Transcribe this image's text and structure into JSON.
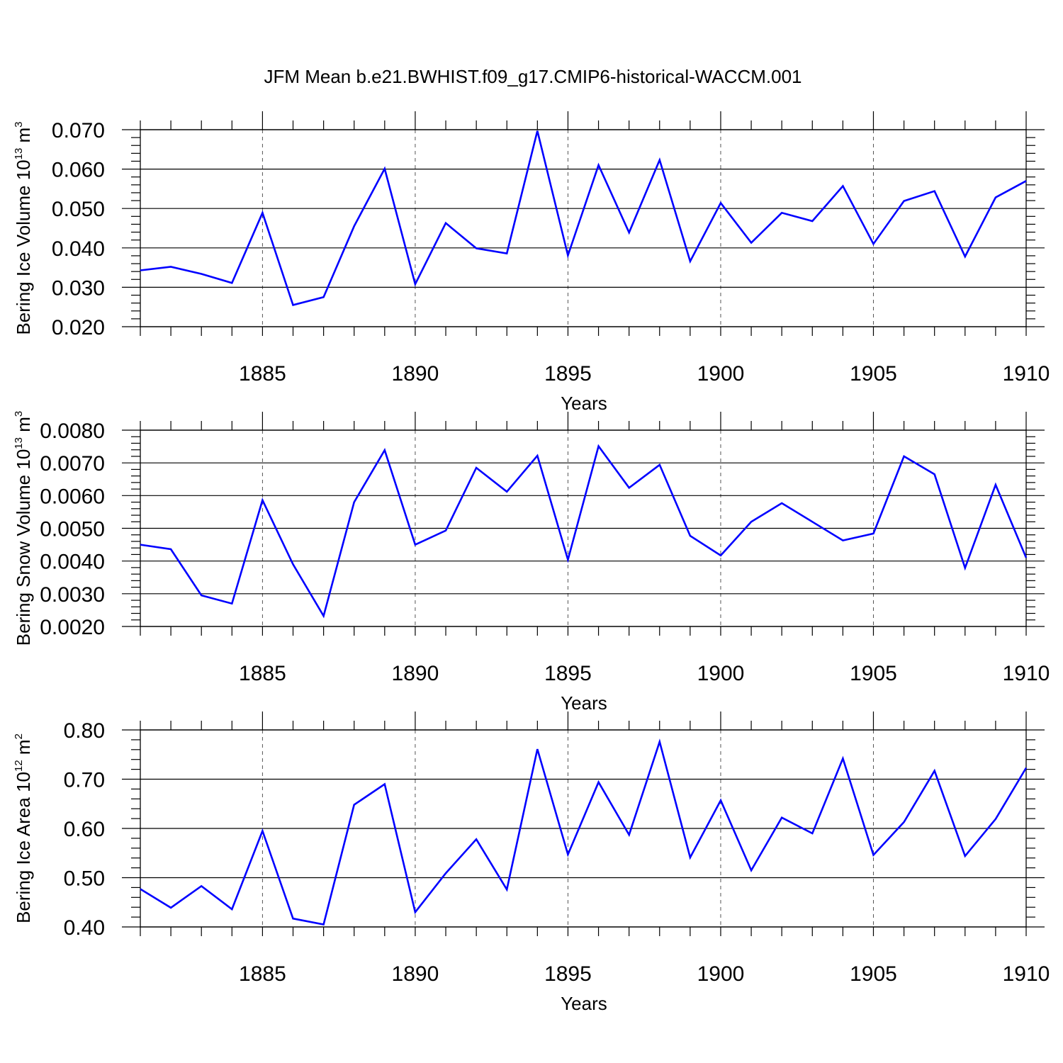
{
  "title": "JFM Mean b.e21.BWHIST.f09_g17.CMIP6-historical-WACCM.001",
  "colors": {
    "line": "#0000ff",
    "axis": "#000000",
    "grid": "#555555"
  },
  "chart_data": [
    {
      "type": "line",
      "name": "ice-volume",
      "ylabel": {
        "text": "Bering Ice Volume 10",
        "exp": "13",
        "unit": " m",
        "unit_exp": "3"
      },
      "xlabel": "Years",
      "xlim": [
        1881,
        1910
      ],
      "ylim": [
        0.02,
        0.07
      ],
      "xticks": [
        1885,
        1890,
        1895,
        1900,
        1905,
        1910
      ],
      "xtick_labels": [
        "1885",
        "1890",
        "1895",
        "1900",
        "1905",
        "1910"
      ],
      "yticks": [
        0.02,
        0.03,
        0.04,
        0.05,
        0.06,
        0.07
      ],
      "ytick_labels": [
        "0.020",
        "0.030",
        "0.040",
        "0.050",
        "0.060",
        "0.070"
      ],
      "grid": "vertical-dashed",
      "x": [
        1881,
        1882,
        1883,
        1884,
        1885,
        1886,
        1887,
        1888,
        1889,
        1890,
        1891,
        1892,
        1893,
        1894,
        1895,
        1896,
        1897,
        1898,
        1899,
        1900,
        1901,
        1902,
        1903,
        1904,
        1905,
        1906,
        1907,
        1908,
        1909,
        1910
      ],
      "values": [
        0.0343,
        0.0352,
        0.0334,
        0.0311,
        0.0489,
        0.0255,
        0.0275,
        0.0455,
        0.0601,
        0.0308,
        0.0463,
        0.0399,
        0.0386,
        0.0697,
        0.0381,
        0.061,
        0.0439,
        0.0623,
        0.0366,
        0.0514,
        0.0413,
        0.0489,
        0.0468,
        0.0557,
        0.041,
        0.0519,
        0.0544,
        0.0378,
        0.0528,
        0.057
      ]
    },
    {
      "type": "line",
      "name": "snow-volume",
      "ylabel": {
        "text": "Bering Snow Volume 10",
        "exp": "13",
        "unit": " m",
        "unit_exp": "3"
      },
      "xlabel": "Years",
      "xlim": [
        1881,
        1910
      ],
      "ylim": [
        0.002,
        0.008
      ],
      "xticks": [
        1885,
        1890,
        1895,
        1900,
        1905,
        1910
      ],
      "xtick_labels": [
        "1885",
        "1890",
        "1895",
        "1900",
        "1905",
        "1910"
      ],
      "yticks": [
        0.002,
        0.003,
        0.004,
        0.005,
        0.006,
        0.007,
        0.008
      ],
      "ytick_labels": [
        "0.0020",
        "0.0030",
        "0.0040",
        "0.0050",
        "0.0060",
        "0.0070",
        "0.0080"
      ],
      "grid": "vertical-dashed",
      "x": [
        1881,
        1882,
        1883,
        1884,
        1885,
        1886,
        1887,
        1888,
        1889,
        1890,
        1891,
        1892,
        1893,
        1894,
        1895,
        1896,
        1897,
        1898,
        1899,
        1900,
        1901,
        1902,
        1903,
        1904,
        1905,
        1906,
        1907,
        1908,
        1909,
        1910
      ],
      "values": [
        0.0045,
        0.00436,
        0.00295,
        0.0027,
        0.00586,
        0.0039,
        0.00232,
        0.0058,
        0.00739,
        0.0045,
        0.00493,
        0.00685,
        0.00612,
        0.00722,
        0.00404,
        0.00751,
        0.00624,
        0.00694,
        0.00477,
        0.00417,
        0.0052,
        0.00577,
        0.0052,
        0.00463,
        0.00484,
        0.0072,
        0.00665,
        0.00379,
        0.00633,
        0.0041
      ]
    },
    {
      "type": "line",
      "name": "ice-area",
      "ylabel": {
        "text": "Bering Ice Area 10",
        "exp": "12",
        "unit": " m",
        "unit_exp": "2"
      },
      "xlabel": "Years",
      "xlim": [
        1881,
        1910
      ],
      "ylim": [
        0.4,
        0.8
      ],
      "xticks": [
        1885,
        1890,
        1895,
        1900,
        1905,
        1910
      ],
      "xtick_labels": [
        "1885",
        "1890",
        "1895",
        "1900",
        "1905",
        "1910"
      ],
      "yticks": [
        0.4,
        0.5,
        0.6,
        0.7,
        0.8
      ],
      "ytick_labels": [
        "0.40",
        "0.50",
        "0.60",
        "0.70",
        "0.80"
      ],
      "grid": "vertical-dashed",
      "x": [
        1881,
        1882,
        1883,
        1884,
        1885,
        1886,
        1887,
        1888,
        1889,
        1890,
        1891,
        1892,
        1893,
        1894,
        1895,
        1896,
        1897,
        1898,
        1899,
        1900,
        1901,
        1902,
        1903,
        1904,
        1905,
        1906,
        1907,
        1908,
        1909,
        1910
      ],
      "values": [
        0.477,
        0.439,
        0.483,
        0.436,
        0.595,
        0.417,
        0.405,
        0.648,
        0.69,
        0.43,
        0.509,
        0.578,
        0.476,
        0.761,
        0.547,
        0.694,
        0.587,
        0.776,
        0.541,
        0.657,
        0.515,
        0.622,
        0.59,
        0.742,
        0.546,
        0.613,
        0.717,
        0.544,
        0.619,
        0.723
      ]
    }
  ]
}
